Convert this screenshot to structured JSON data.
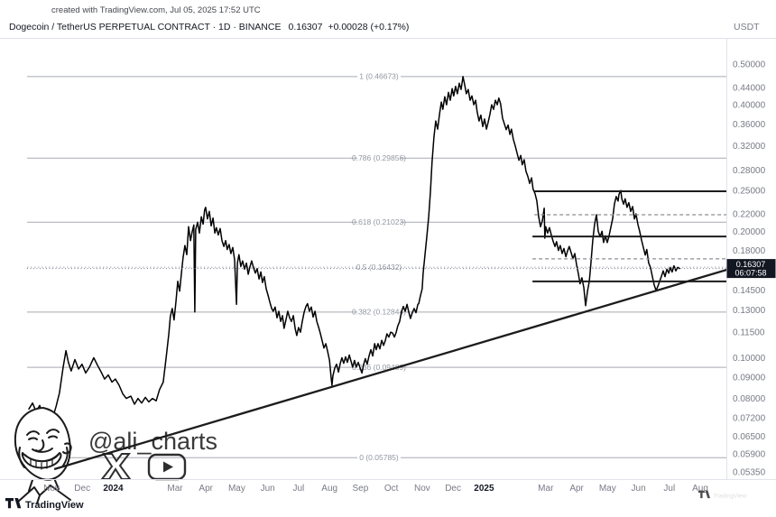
{
  "header": {
    "created_with": "created with TradingView.com, Jul 05, 2025 17:52 UTC",
    "symbol": "Dogecoin / TetherUS PERPETUAL CONTRACT · 1D · BINANCE",
    "last_price": "0.16307",
    "change": "+0.00028",
    "change_pct": "(+0.17%)",
    "currency": "USDT"
  },
  "watermark": {
    "handle": "@ali_charts",
    "icons": [
      "x-logo-icon",
      "youtube-play-icon"
    ]
  },
  "footer": {
    "brand": "TradingView",
    "brand_right": "TradingView"
  },
  "price_label": {
    "price": "0.16307",
    "countdown": "06:07:58"
  },
  "colors": {
    "background": "#ffffff",
    "price_line": "#000000",
    "fib_line": "#a7aab2",
    "fib_text": "#9096a1",
    "axis_text": "#787b86",
    "drawn_line": "#1c1c1c",
    "dashed_line": "#8a8d94",
    "border": "#e0e3eb",
    "price_label_bg": "#131722",
    "price_label_text": "#ffffff",
    "watermark_ink": "#2e2e2e"
  },
  "chart_data": {
    "type": "line",
    "title": "Dogecoin / TetherUS PERPETUAL CONTRACT",
    "timeframe": "1D",
    "exchange": "BINANCE",
    "quote_currency": "USDT",
    "scale": "log",
    "x_unit": "months since Nov 2023 tick",
    "ylim": [
      0.0535,
      0.5
    ],
    "grid": false,
    "current_price": 0.16307,
    "y_axis_ticks": [
      "0.50000",
      "0.44000",
      "0.40000",
      "0.36000",
      "0.32000",
      "0.28000",
      "0.25000",
      "0.22000",
      "0.20000",
      "0.18000",
      "0.14500",
      "0.13000",
      "0.11500",
      "0.10000",
      "0.09000",
      "0.08000",
      "0.07200",
      "0.06500",
      "0.05900",
      "0.05350"
    ],
    "time_ticks": [
      {
        "label": "Nov",
        "m": 0,
        "bold": false
      },
      {
        "label": "Dec",
        "m": 1,
        "bold": false
      },
      {
        "label": "2024",
        "m": 2,
        "bold": true
      },
      {
        "label": "Mar",
        "m": 4,
        "bold": false
      },
      {
        "label": "Apr",
        "m": 5,
        "bold": false
      },
      {
        "label": "May",
        "m": 6,
        "bold": false
      },
      {
        "label": "Jun",
        "m": 7,
        "bold": false
      },
      {
        "label": "Jul",
        "m": 8,
        "bold": false
      },
      {
        "label": "Aug",
        "m": 9,
        "bold": false
      },
      {
        "label": "Sep",
        "m": 10,
        "bold": false
      },
      {
        "label": "Oct",
        "m": 11,
        "bold": false
      },
      {
        "label": "Nov",
        "m": 12,
        "bold": false
      },
      {
        "label": "Dec",
        "m": 13,
        "bold": false
      },
      {
        "label": "2025",
        "m": 14,
        "bold": true
      },
      {
        "label": "Mar",
        "m": 16,
        "bold": false
      },
      {
        "label": "Apr",
        "m": 17,
        "bold": false
      },
      {
        "label": "May",
        "m": 18,
        "bold": false
      },
      {
        "label": "Jun",
        "m": 19,
        "bold": false
      },
      {
        "label": "Jul",
        "m": 20,
        "bold": false
      },
      {
        "label": "Aug",
        "m": 21,
        "bold": false
      }
    ],
    "fib_levels": [
      {
        "ratio": "1",
        "price": 0.46673
      },
      {
        "ratio": "0.786",
        "price": 0.29856
      },
      {
        "ratio": "0.618",
        "price": 0.21023
      },
      {
        "ratio": "0.5",
        "price": 0.16432,
        "style": "dotted"
      },
      {
        "ratio": "0.382",
        "price": 0.12844
      },
      {
        "ratio": "0.236",
        "price": 0.09489
      },
      {
        "ratio": "0",
        "price": 0.05785
      }
    ],
    "drawn_lines": {
      "solid_black": [
        {
          "price": 0.249,
          "from_m": 15.63
        },
        {
          "price": 0.1944,
          "from_m": 15.57
        },
        {
          "price": 0.1519,
          "from_m": 15.57
        }
      ],
      "dashed_gray": [
        {
          "price": 0.2189,
          "from_m": 15.63
        },
        {
          "price": 0.1719,
          "from_m": 15.57
        }
      ]
    },
    "trendline": {
      "from": {
        "m": 0.09,
        "price": 0.0543
      },
      "to": {
        "m": 22.05,
        "price": 0.1635
      }
    },
    "series": [
      [
        -0.73,
        0.0755
      ],
      [
        -0.61,
        0.078
      ],
      [
        -0.5,
        0.0745
      ],
      [
        -0.38,
        0.077
      ],
      [
        -0.26,
        0.0725
      ],
      [
        -0.15,
        0.07
      ],
      [
        -0.06,
        0.0735
      ],
      [
        0.03,
        0.0715
      ],
      [
        0.15,
        0.0765
      ],
      [
        0.26,
        0.0825
      ],
      [
        0.38,
        0.095
      ],
      [
        0.47,
        0.104
      ],
      [
        0.55,
        0.0975
      ],
      [
        0.64,
        0.093
      ],
      [
        0.76,
        0.099
      ],
      [
        0.88,
        0.094
      ],
      [
        0.99,
        0.0965
      ],
      [
        1.11,
        0.092
      ],
      [
        1.23,
        0.095
      ],
      [
        1.37,
        0.1
      ],
      [
        1.49,
        0.096
      ],
      [
        1.61,
        0.0925
      ],
      [
        1.72,
        0.089
      ],
      [
        1.84,
        0.091
      ],
      [
        1.96,
        0.0875
      ],
      [
        2.07,
        0.089
      ],
      [
        2.19,
        0.086
      ],
      [
        2.31,
        0.082
      ],
      [
        2.42,
        0.08
      ],
      [
        2.57,
        0.081
      ],
      [
        2.69,
        0.0775
      ],
      [
        2.8,
        0.08
      ],
      [
        2.92,
        0.078
      ],
      [
        3.04,
        0.0805
      ],
      [
        3.15,
        0.0785
      ],
      [
        3.27,
        0.08
      ],
      [
        3.39,
        0.079
      ],
      [
        3.5,
        0.084
      ],
      [
        3.62,
        0.0875
      ],
      [
        3.71,
        0.0995
      ],
      [
        3.8,
        0.114
      ],
      [
        3.85,
        0.1255
      ],
      [
        3.91,
        0.131
      ],
      [
        3.97,
        0.123
      ],
      [
        4.03,
        0.136
      ],
      [
        4.09,
        0.152
      ],
      [
        4.15,
        0.144
      ],
      [
        4.21,
        0.16
      ],
      [
        4.26,
        0.173
      ],
      [
        4.32,
        0.185
      ],
      [
        4.38,
        0.176
      ],
      [
        4.44,
        0.205
      ],
      [
        4.5,
        0.19
      ],
      [
        4.56,
        0.2
      ],
      [
        4.61,
        0.207
      ],
      [
        4.64,
        0.1285
      ],
      [
        4.67,
        0.202
      ],
      [
        4.73,
        0.21
      ],
      [
        4.79,
        0.198
      ],
      [
        4.85,
        0.2165
      ],
      [
        4.91,
        0.208
      ],
      [
        4.96,
        0.225
      ],
      [
        4.99,
        0.228
      ],
      [
        5.05,
        0.214
      ],
      [
        5.11,
        0.223
      ],
      [
        5.17,
        0.206
      ],
      [
        5.23,
        0.215
      ],
      [
        5.29,
        0.198
      ],
      [
        5.34,
        0.204
      ],
      [
        5.4,
        0.196
      ],
      [
        5.46,
        0.203
      ],
      [
        5.52,
        0.19
      ],
      [
        5.58,
        0.184
      ],
      [
        5.64,
        0.19
      ],
      [
        5.69,
        0.181
      ],
      [
        5.75,
        0.186
      ],
      [
        5.81,
        0.177
      ],
      [
        5.87,
        0.183
      ],
      [
        5.93,
        0.171
      ],
      [
        5.99,
        0.134
      ],
      [
        6.02,
        0.168
      ],
      [
        6.07,
        0.176
      ],
      [
        6.13,
        0.165
      ],
      [
        6.19,
        0.17
      ],
      [
        6.25,
        0.1625
      ],
      [
        6.31,
        0.168
      ],
      [
        6.37,
        0.158
      ],
      [
        6.42,
        0.164
      ],
      [
        6.48,
        0.17
      ],
      [
        6.54,
        0.164
      ],
      [
        6.6,
        0.159
      ],
      [
        6.66,
        0.163
      ],
      [
        6.72,
        0.154
      ],
      [
        6.78,
        0.16
      ],
      [
        6.83,
        0.151
      ],
      [
        6.89,
        0.156
      ],
      [
        6.95,
        0.146
      ],
      [
        7.01,
        0.141
      ],
      [
        7.07,
        0.1355
      ],
      [
        7.13,
        0.131
      ],
      [
        7.18,
        0.129
      ],
      [
        7.24,
        0.132
      ],
      [
        7.3,
        0.1245
      ],
      [
        7.36,
        0.129
      ],
      [
        7.42,
        0.122
      ],
      [
        7.48,
        0.126
      ],
      [
        7.53,
        0.1175
      ],
      [
        7.59,
        0.123
      ],
      [
        7.65,
        0.129
      ],
      [
        7.71,
        0.1245
      ],
      [
        7.77,
        0.122
      ],
      [
        7.83,
        0.126
      ],
      [
        7.89,
        0.117
      ],
      [
        7.94,
        0.113
      ],
      [
        8,
        0.118
      ],
      [
        8.06,
        0.115
      ],
      [
        8.12,
        0.122
      ],
      [
        8.18,
        0.1285
      ],
      [
        8.24,
        0.1325
      ],
      [
        8.29,
        0.1345
      ],
      [
        8.35,
        0.129
      ],
      [
        8.41,
        0.132
      ],
      [
        8.47,
        0.125
      ],
      [
        8.53,
        0.129
      ],
      [
        8.59,
        0.122
      ],
      [
        8.65,
        0.118
      ],
      [
        8.7,
        0.1145
      ],
      [
        8.76,
        0.11
      ],
      [
        8.82,
        0.1055
      ],
      [
        8.88,
        0.108
      ],
      [
        8.94,
        0.1035
      ],
      [
        9,
        0.0985
      ],
      [
        9.05,
        0.09
      ],
      [
        9.08,
        0.086
      ],
      [
        9.11,
        0.0905
      ],
      [
        9.17,
        0.0945
      ],
      [
        9.23,
        0.0965
      ],
      [
        9.29,
        0.0925
      ],
      [
        9.35,
        0.097
      ],
      [
        9.4,
        0.1
      ],
      [
        9.46,
        0.097
      ],
      [
        9.52,
        0.1005
      ],
      [
        9.58,
        0.0975
      ],
      [
        9.64,
        0.1015
      ],
      [
        9.7,
        0.098
      ],
      [
        9.75,
        0.095
      ],
      [
        9.81,
        0.0985
      ],
      [
        9.87,
        0.095
      ],
      [
        9.93,
        0.0975
      ],
      [
        9.99,
        0.0945
      ],
      [
        10.05,
        0.092
      ],
      [
        10.1,
        0.096
      ],
      [
        10.16,
        0.0995
      ],
      [
        10.22,
        0.0965
      ],
      [
        10.28,
        0.101
      ],
      [
        10.34,
        0.1045
      ],
      [
        10.4,
        0.101
      ],
      [
        10.46,
        0.108
      ],
      [
        10.51,
        0.1045
      ],
      [
        10.57,
        0.108
      ],
      [
        10.63,
        0.105
      ],
      [
        10.69,
        0.11
      ],
      [
        10.75,
        0.107
      ],
      [
        10.81,
        0.11
      ],
      [
        10.86,
        0.114
      ],
      [
        10.92,
        0.112
      ],
      [
        10.98,
        0.115
      ],
      [
        11.04,
        0.1145
      ],
      [
        11.1,
        0.112
      ],
      [
        11.16,
        0.115
      ],
      [
        11.21,
        0.119
      ],
      [
        11.27,
        0.122
      ],
      [
        11.33,
        0.1285
      ],
      [
        11.39,
        0.1325
      ],
      [
        11.45,
        0.129
      ],
      [
        11.51,
        0.134
      ],
      [
        11.56,
        0.129
      ],
      [
        11.62,
        0.124
      ],
      [
        11.68,
        0.128
      ],
      [
        11.74,
        0.131
      ],
      [
        11.8,
        0.128
      ],
      [
        11.86,
        0.134
      ],
      [
        11.89,
        0.1345
      ],
      [
        11.94,
        0.14
      ],
      [
        12,
        0.146
      ],
      [
        12.03,
        0.1585
      ],
      [
        12.09,
        0.176
      ],
      [
        12.15,
        0.194
      ],
      [
        12.21,
        0.2165
      ],
      [
        12.27,
        0.25
      ],
      [
        12.32,
        0.292
      ],
      [
        12.38,
        0.335
      ],
      [
        12.44,
        0.366
      ],
      [
        12.5,
        0.35
      ],
      [
        12.56,
        0.38
      ],
      [
        12.62,
        0.406
      ],
      [
        12.67,
        0.39
      ],
      [
        12.73,
        0.418
      ],
      [
        12.79,
        0.4
      ],
      [
        12.85,
        0.428
      ],
      [
        12.91,
        0.41
      ],
      [
        12.97,
        0.437
      ],
      [
        13.02,
        0.42
      ],
      [
        13.08,
        0.4425
      ],
      [
        13.14,
        0.425
      ],
      [
        13.2,
        0.45
      ],
      [
        13.26,
        0.435
      ],
      [
        13.32,
        0.4667
      ],
      [
        13.38,
        0.445
      ],
      [
        13.43,
        0.425
      ],
      [
        13.49,
        0.435
      ],
      [
        13.55,
        0.41
      ],
      [
        13.61,
        0.42
      ],
      [
        13.67,
        0.4
      ],
      [
        13.73,
        0.41
      ],
      [
        13.78,
        0.385
      ],
      [
        13.84,
        0.366
      ],
      [
        13.9,
        0.378
      ],
      [
        13.96,
        0.355
      ],
      [
        14.02,
        0.37
      ],
      [
        14.08,
        0.35
      ],
      [
        14.13,
        0.362
      ],
      [
        14.19,
        0.379
      ],
      [
        14.25,
        0.4
      ],
      [
        14.31,
        0.39
      ],
      [
        14.37,
        0.41
      ],
      [
        14.43,
        0.4
      ],
      [
        14.48,
        0.415
      ],
      [
        14.54,
        0.402
      ],
      [
        14.6,
        0.372
      ],
      [
        14.66,
        0.36
      ],
      [
        14.72,
        0.349
      ],
      [
        14.78,
        0.358
      ],
      [
        14.84,
        0.34
      ],
      [
        14.89,
        0.35
      ],
      [
        14.95,
        0.331
      ],
      [
        15.01,
        0.32
      ],
      [
        15.07,
        0.307
      ],
      [
        15.13,
        0.295
      ],
      [
        15.19,
        0.303
      ],
      [
        15.24,
        0.288
      ],
      [
        15.3,
        0.296
      ],
      [
        15.36,
        0.278
      ],
      [
        15.42,
        0.27
      ],
      [
        15.48,
        0.26
      ],
      [
        15.54,
        0.268
      ],
      [
        15.59,
        0.252
      ],
      [
        15.65,
        0.246
      ],
      [
        15.71,
        0.2365
      ],
      [
        15.77,
        0.2165
      ],
      [
        15.83,
        0.205
      ],
      [
        15.89,
        0.212
      ],
      [
        15.95,
        0.227
      ],
      [
        15.97,
        0.1925
      ],
      [
        16,
        0.205
      ],
      [
        16.06,
        0.198
      ],
      [
        16.12,
        0.204
      ],
      [
        16.18,
        0.196
      ],
      [
        16.24,
        0.189
      ],
      [
        16.3,
        0.184
      ],
      [
        16.35,
        0.189
      ],
      [
        16.41,
        0.18
      ],
      [
        16.47,
        0.185
      ],
      [
        16.53,
        0.177
      ],
      [
        16.59,
        0.182
      ],
      [
        16.65,
        0.174
      ],
      [
        16.7,
        0.179
      ],
      [
        16.76,
        0.184
      ],
      [
        16.82,
        0.178
      ],
      [
        16.88,
        0.172
      ],
      [
        16.94,
        0.177
      ],
      [
        17,
        0.166
      ],
      [
        17.06,
        0.158
      ],
      [
        17.11,
        0.15
      ],
      [
        17.17,
        0.155
      ],
      [
        17.23,
        0.147
      ],
      [
        17.29,
        0.133
      ],
      [
        17.35,
        0.144
      ],
      [
        17.41,
        0.152
      ],
      [
        17.46,
        0.167
      ],
      [
        17.52,
        0.19
      ],
      [
        17.58,
        0.2075
      ],
      [
        17.64,
        0.219
      ],
      [
        17.7,
        0.2
      ],
      [
        17.76,
        0.194
      ],
      [
        17.82,
        0.2
      ],
      [
        17.87,
        0.188
      ],
      [
        17.93,
        0.195
      ],
      [
        17.99,
        0.188
      ],
      [
        18.05,
        0.195
      ],
      [
        18.11,
        0.205
      ],
      [
        18.17,
        0.215
      ],
      [
        18.22,
        0.232
      ],
      [
        18.28,
        0.242
      ],
      [
        18.34,
        0.236
      ],
      [
        18.37,
        0.245
      ],
      [
        18.43,
        0.25
      ],
      [
        18.46,
        0.239
      ],
      [
        18.52,
        0.232
      ],
      [
        18.57,
        0.239
      ],
      [
        18.63,
        0.228
      ],
      [
        18.69,
        0.234
      ],
      [
        18.75,
        0.223
      ],
      [
        18.81,
        0.229
      ],
      [
        18.87,
        0.214
      ],
      [
        18.92,
        0.22
      ],
      [
        18.98,
        0.208
      ],
      [
        19.04,
        0.2
      ],
      [
        19.1,
        0.1905
      ],
      [
        19.16,
        0.183
      ],
      [
        19.22,
        0.1755
      ],
      [
        19.27,
        0.181
      ],
      [
        19.33,
        0.168
      ],
      [
        19.39,
        0.164
      ],
      [
        19.45,
        0.156
      ],
      [
        19.51,
        0.149
      ],
      [
        19.57,
        0.1445
      ],
      [
        19.63,
        0.148
      ],
      [
        19.68,
        0.1515
      ],
      [
        19.74,
        0.156
      ],
      [
        19.8,
        0.161
      ],
      [
        19.86,
        0.156
      ],
      [
        19.92,
        0.1625
      ],
      [
        19.98,
        0.159
      ],
      [
        20.03,
        0.164
      ],
      [
        20.09,
        0.16
      ],
      [
        20.15,
        0.1655
      ],
      [
        20.21,
        0.161
      ],
      [
        20.27,
        0.164
      ],
      [
        20.33,
        0.1631
      ]
    ]
  }
}
